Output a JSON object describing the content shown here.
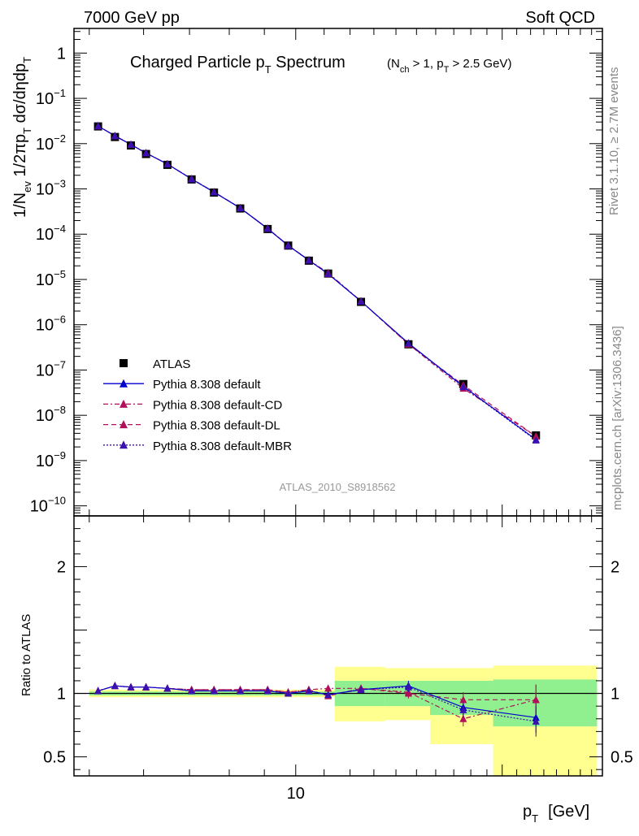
{
  "header": {
    "left": "7000 GeV pp",
    "right": "Soft QCD"
  },
  "title": {
    "main": "Charged Particle p",
    "main_sub": "T",
    "main_end": " Spectrum",
    "cond_open": "(N",
    "cond_sub1": "ch",
    "cond_mid": " > 1, p",
    "cond_sub2": "T",
    "cond_end": " > 2.5 GeV)"
  },
  "side_labels": {
    "rivet": "Rivet 3.1.10, ≥ 2.7M events",
    "mcplots": "mcplots.cern.ch [arXiv:1306.3436]"
  },
  "analysis_id": "ATLAS_2010_S8918562",
  "axis_labels": {
    "xlabel_main": "p",
    "xlabel_sub": "T",
    "xlabel_unit": "[GeV]",
    "ylabel_top": "1/N",
    "ylabel_top_sub": "ev",
    "ylabel_top_rest": " 1/2πp",
    "ylabel_top_sub2": "T",
    "ylabel_top_end": " dσ/dηdp",
    "ylabel_top_sub3": "T",
    "ylabel_ratio": "Ratio to ATLAS"
  },
  "legend": [
    {
      "label": "ATLAS",
      "color": "#000000",
      "marker": "square",
      "dash": "none"
    },
    {
      "label": "Pythia 8.308 default",
      "color": "#0000cc",
      "marker": "triangle",
      "dash": "solid"
    },
    {
      "label": "Pythia 8.308 default-CD",
      "color": "#b0105a",
      "marker": "triangle",
      "dash": "dashdot"
    },
    {
      "label": "Pythia 8.308 default-DL",
      "color": "#b0105a",
      "marker": "triangle",
      "dash": "dashed"
    },
    {
      "label": "Pythia 8.308 default-MBR",
      "color": "#3a10b0",
      "marker": "triangle",
      "dash": "dotted"
    }
  ],
  "chart_data": {
    "type": "scatter",
    "x_scale": "log",
    "x_range": [
      4.75,
      28
    ],
    "x_tick_labels": [
      {
        "value": 10,
        "label": "10"
      }
    ],
    "main_panel": {
      "y_scale": "log",
      "y_range": [
        6e-11,
        3.5
      ],
      "y_tick_labels": [
        {
          "exp": 0,
          "label": "1"
        },
        {
          "exp": -1,
          "label": "10",
          "sup": "−1"
        },
        {
          "exp": -2,
          "label": "10",
          "sup": "−2"
        },
        {
          "exp": -3,
          "label": "10",
          "sup": "−3"
        },
        {
          "exp": -4,
          "label": "10",
          "sup": "−4"
        },
        {
          "exp": -5,
          "label": "10",
          "sup": "−5"
        },
        {
          "exp": -6,
          "label": "10",
          "sup": "−6"
        },
        {
          "exp": -7,
          "label": "10",
          "sup": "−7"
        },
        {
          "exp": -8,
          "label": "10",
          "sup": "−8"
        },
        {
          "exp": -9,
          "label": "10",
          "sup": "−9"
        },
        {
          "exp": -10,
          "label": "10",
          "sup": "−10"
        }
      ]
    },
    "ratio_panel": {
      "y_scale": "linear",
      "y_range": [
        0.35,
        2.4
      ],
      "y_ticks": [
        0.5,
        1,
        2
      ],
      "y_tick_labels": [
        "0.5",
        "1",
        "2"
      ]
    },
    "x": [
      5.15,
      5.45,
      5.75,
      6.05,
      6.5,
      7.05,
      7.6,
      8.3,
      9.1,
      9.75,
      10.45,
      11.15,
      12.45,
      14.6,
      17.55,
      22.4
    ],
    "x_bins": [
      [
        5.0,
        5.3
      ],
      [
        5.3,
        5.6
      ],
      [
        5.6,
        5.9
      ],
      [
        5.9,
        6.2
      ],
      [
        6.2,
        6.8
      ],
      [
        6.8,
        7.3
      ],
      [
        7.3,
        7.9
      ],
      [
        7.9,
        8.7
      ],
      [
        8.7,
        9.5
      ],
      [
        9.5,
        10.0
      ],
      [
        10.0,
        10.9
      ],
      [
        10.9,
        11.4
      ],
      [
        11.4,
        13.5
      ],
      [
        13.5,
        15.7
      ],
      [
        15.7,
        19.4
      ],
      [
        19.4,
        27.5
      ]
    ],
    "atlas_values": [
      0.024,
      0.014,
      0.0091,
      0.0059,
      0.0034,
      0.00162,
      0.00083,
      0.00037,
      0.00013,
      5.6e-05,
      2.6e-05,
      1.35e-05,
      3.2e-06,
      3.7e-07,
      4.9e-08,
      3.6e-09
    ],
    "band_inner_stat": [
      [
        0.985,
        1.015
      ],
      [
        0.985,
        1.015
      ],
      [
        0.985,
        1.015
      ],
      [
        0.985,
        1.015
      ],
      [
        0.985,
        1.015
      ],
      [
        0.985,
        1.015
      ],
      [
        0.985,
        1.015
      ],
      [
        0.985,
        1.015
      ],
      [
        0.985,
        1.015
      ],
      [
        0.985,
        1.015
      ],
      [
        0.985,
        1.015
      ],
      [
        0.985,
        1.015
      ],
      [
        0.9,
        1.1
      ],
      [
        0.9,
        1.1
      ],
      [
        0.83,
        1.1
      ],
      [
        0.74,
        1.11
      ]
    ],
    "band_outer_total": [
      [
        0.97,
        1.03
      ],
      [
        0.97,
        1.03
      ],
      [
        0.97,
        1.03
      ],
      [
        0.97,
        1.03
      ],
      [
        0.97,
        1.03
      ],
      [
        0.97,
        1.03
      ],
      [
        0.97,
        1.03
      ],
      [
        0.97,
        1.03
      ],
      [
        0.97,
        1.03
      ],
      [
        0.97,
        1.03
      ],
      [
        0.97,
        1.03
      ],
      [
        0.97,
        1.03
      ],
      [
        0.78,
        1.21
      ],
      [
        0.79,
        1.2
      ],
      [
        0.6,
        1.2
      ],
      [
        0.35,
        1.22
      ]
    ],
    "series": [
      {
        "name": "Pythia 8.308 default",
        "ratio": [
          1.02,
          1.06,
          1.05,
          1.05,
          1.04,
          1.02,
          1.02,
          1.02,
          1.02,
          1.0,
          1.02,
          0.99,
          1.03,
          1.06,
          0.89,
          0.81
        ],
        "ratio_err": [
          0.005,
          0.005,
          0.005,
          0.005,
          0.005,
          0.006,
          0.006,
          0.008,
          0.01,
          0.012,
          0.012,
          0.015,
          0.02,
          0.04,
          0.06,
          0.12
        ]
      },
      {
        "name": "Pythia 8.308 default-CD",
        "ratio": [
          1.02,
          1.06,
          1.05,
          1.05,
          1.04,
          1.03,
          1.03,
          1.03,
          1.03,
          1.01,
          1.03,
          1.04,
          1.04,
          1.01,
          0.8,
          0.95
        ],
        "ratio_err": [
          0.005,
          0.005,
          0.005,
          0.005,
          0.005,
          0.006,
          0.006,
          0.008,
          0.01,
          0.012,
          0.012,
          0.015,
          0.02,
          0.04,
          0.06,
          0.12
        ]
      },
      {
        "name": "Pythia 8.308 default-DL",
        "ratio": [
          1.02,
          1.06,
          1.05,
          1.05,
          1.04,
          1.03,
          1.03,
          1.03,
          1.03,
          1.01,
          1.03,
          0.98,
          1.04,
          1.0,
          0.95,
          0.95
        ],
        "ratio_err": [
          0.005,
          0.005,
          0.005,
          0.005,
          0.005,
          0.006,
          0.006,
          0.008,
          0.01,
          0.012,
          0.012,
          0.015,
          0.02,
          0.04,
          0.06,
          0.12
        ]
      },
      {
        "name": "Pythia 8.308 default-MBR",
        "ratio": [
          1.02,
          1.06,
          1.05,
          1.05,
          1.04,
          1.02,
          1.02,
          1.02,
          1.02,
          1.0,
          1.02,
          0.99,
          1.03,
          1.05,
          0.87,
          0.78
        ],
        "ratio_err": [
          0.005,
          0.005,
          0.005,
          0.005,
          0.005,
          0.006,
          0.006,
          0.008,
          0.01,
          0.012,
          0.012,
          0.015,
          0.02,
          0.04,
          0.06,
          0.12
        ]
      }
    ]
  },
  "colors": {
    "band_inner": "#90f090",
    "band_outer": "#ffff90",
    "frame": "#000000",
    "side_text": "#888888",
    "analysis_text": "#999999"
  }
}
